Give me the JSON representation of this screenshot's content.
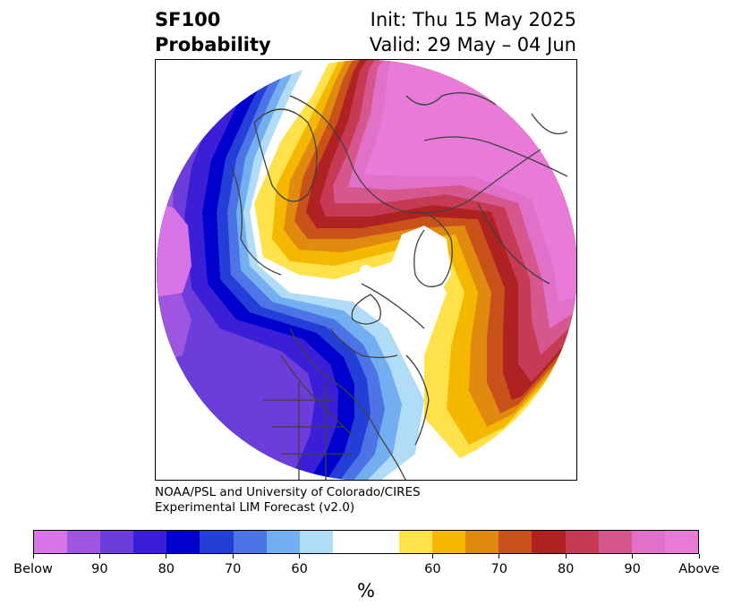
{
  "title": {
    "left_line1": "SF100",
    "left_line2": "Probability",
    "right_line1": "Init: Thu 15 May 2025",
    "right_line2": "Valid: 29 May – 04 Jun"
  },
  "credit": {
    "line1": "NOAA/PSL and University of Colorado/CIRES",
    "line2": "Experimental LIM Forecast (v2.0)"
  },
  "colorbar": {
    "unit": "%",
    "colors": [
      "#d774e8",
      "#9e56e0",
      "#6c3ddb",
      "#3a1fd6",
      "#0000cc",
      "#233fd8",
      "#4c74e6",
      "#72aef0",
      "#b0dcf8",
      "#ffffff",
      "#ffe24a",
      "#f5b800",
      "#e08a10",
      "#c8521a",
      "#b02222",
      "#c73a55",
      "#d6568e",
      "#e070c8",
      "#e87ad8"
    ],
    "tick_labels": [
      "Below",
      "90",
      "80",
      "70",
      "60",
      "60",
      "70",
      "80",
      "90",
      "Above"
    ]
  }
}
